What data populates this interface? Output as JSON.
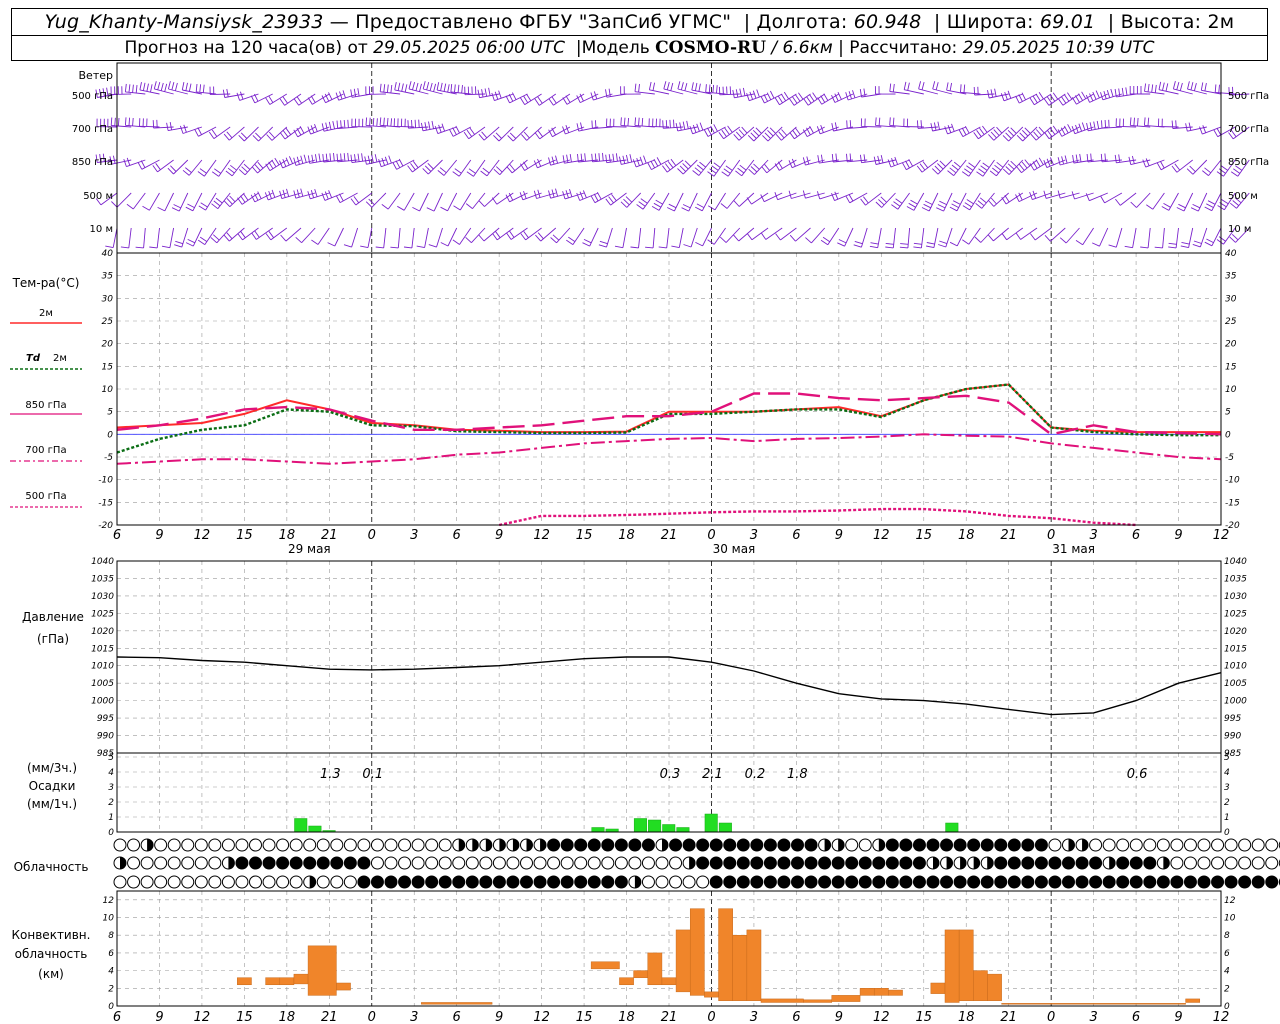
{
  "header": {
    "station": "Yug_Khanty-Mansiysk_23933",
    "provider": " — Предоставлено ФГБУ \"ЗапСиб УГМС\"",
    "lon_label": "Долгота:",
    "lon_value": "60.948",
    "lat_label": "Широта:",
    "lat_value": "69.01",
    "alt_label": "Высота:",
    "alt_value": "2м",
    "forecast_prefix": "Прогноз на 120 часа(ов) от",
    "forecast_from": "29.05.2025 06:00 UTC",
    "model_label": "Модель",
    "model_name": "COSMO-RU",
    "model_res": "/ 6.6км",
    "calc_label": "Рассчитано:",
    "calc_value": "29.05.2025 10:39 UTC"
  },
  "labels": {
    "wind": "Ветер",
    "wind_levels": [
      "500 гПа",
      "700 гПа",
      "850 гПа",
      "500 м",
      "10  м"
    ],
    "temp_title": "Тем-ра(°C)",
    "temp_2m": "2м",
    "td_a": "Td",
    "td_b": "2м",
    "t850": "850 гПа",
    "t700": "700 гПа",
    "t500": "500 гПа",
    "pressure_a": "Давление",
    "pressure_b": "(гПа)",
    "precip_a": "(мм/3ч.)",
    "precip_b": "Осадки",
    "precip_c": "(мм/1ч.)",
    "clouds": "Облачность",
    "conv_a": "Конвективн.",
    "conv_b": "облачность",
    "conv_c": "(км)"
  },
  "colors": {
    "wind": "#7a22cc",
    "t2m": "#ff2a2a",
    "td2m": "#0a6e14",
    "t850": "#e0117a",
    "t700": "#e0117a",
    "t500": "#e0117a",
    "precip": "#22dd22",
    "conv": "#f0852a",
    "zero_line": "#3a3aff"
  },
  "chart_data": [
    {
      "type": "line",
      "title": "Тем-ра(°C)",
      "x_ticks_hours": [
        "6",
        "9",
        "12",
        "15",
        "18",
        "21",
        "0",
        "3",
        "6",
        "9",
        "12",
        "15",
        "18",
        "21",
        "0",
        "3",
        "6",
        "9",
        "12",
        "15",
        "18",
        "21",
        "0",
        "3",
        "6",
        "9",
        "12"
      ],
      "day_labels": [
        "29 мая",
        "30 мая",
        "31 мая"
      ],
      "ylim": [
        -20,
        40
      ],
      "y_ticks": [
        -20,
        -15,
        -10,
        -5,
        0,
        5,
        10,
        15,
        20,
        25,
        30,
        35,
        40
      ],
      "x_hours_from_start": [
        0,
        3,
        6,
        9,
        12,
        15,
        18,
        21,
        24,
        27,
        30,
        33,
        36,
        39,
        42,
        45,
        48,
        51,
        54,
        57,
        60,
        63,
        66,
        69,
        72,
        75,
        78
      ],
      "series": [
        {
          "name": "2м",
          "values": [
            1.5,
            2,
            2.5,
            4.5,
            7.5,
            5.5,
            2.5,
            2,
            1,
            0.8,
            0.5,
            0.5,
            0.6,
            5,
            5,
            5,
            5.5,
            6,
            4,
            7.5,
            10,
            11,
            1.5,
            0.8,
            0.5,
            0.5,
            0.5
          ]
        },
        {
          "name": "Td 2м",
          "values": [
            -4,
            -1,
            1,
            2,
            5.5,
            5,
            2,
            1.8,
            0.7,
            0.5,
            0.3,
            0.3,
            0.4,
            4.5,
            4.5,
            5,
            5.5,
            5.5,
            3.8,
            7.5,
            10,
            11,
            1.5,
            0.5,
            0,
            -0.2,
            -0.2
          ]
        },
        {
          "name": "850 гПа",
          "values": [
            1,
            2,
            3.5,
            5.5,
            6,
            5.5,
            3,
            1,
            1,
            1.5,
            2,
            3,
            4,
            4,
            5,
            9,
            9,
            8,
            7.5,
            8,
            8.5,
            7,
            0,
            2,
            0.5,
            0.3,
            0
          ]
        },
        {
          "name": "700 гПа",
          "values": [
            -6.5,
            -6,
            -5.5,
            -5.5,
            -6,
            -6.5,
            -6,
            -5.5,
            -4.5,
            -4,
            -3,
            -2,
            -1.5,
            -1,
            -0.8,
            -1.5,
            -1,
            -0.8,
            -0.5,
            0,
            -0.3,
            -0.5,
            -2,
            -3,
            -4,
            -5,
            -5.5
          ]
        },
        {
          "name": "500 гПа",
          "values": [
            null,
            null,
            null,
            null,
            null,
            null,
            null,
            null,
            null,
            -20,
            -18,
            -18,
            -17.8,
            -17.5,
            -17.2,
            -17,
            -17,
            -16.8,
            -16.5,
            -16.5,
            -17,
            -18,
            -18.5,
            -19.5,
            -20,
            null,
            null
          ]
        }
      ]
    },
    {
      "type": "line",
      "title": "Давление",
      "ylabel": "(гПа)",
      "ylim": [
        985,
        1040
      ],
      "y_ticks": [
        985,
        990,
        995,
        1000,
        1005,
        1010,
        1015,
        1020,
        1025,
        1030,
        1035,
        1040
      ],
      "x_hours_from_start": [
        0,
        3,
        6,
        9,
        12,
        15,
        18,
        21,
        24,
        27,
        30,
        33,
        36,
        39,
        42,
        45,
        48,
        51,
        54,
        57,
        60,
        63,
        66,
        69,
        72,
        75,
        78
      ],
      "values": [
        1012.5,
        1012.3,
        1011.5,
        1011,
        1010,
        1009,
        1008.8,
        1009,
        1009.5,
        1010,
        1011,
        1012,
        1012.5,
        1012.5,
        1011,
        1008.5,
        1005,
        1002,
        1000.5,
        1000,
        999,
        997.5,
        996,
        996.5,
        1000,
        1005,
        1008
      ]
    },
    {
      "type": "bar",
      "title": "Осадки",
      "ylim": [
        0,
        5
      ],
      "labels_3h": [
        {
          "hour_from_start": 15,
          "text": "1.3"
        },
        {
          "hour_from_start": 18,
          "text": "0.1"
        },
        {
          "hour_from_start": 39,
          "text": "0.3"
        },
        {
          "hour_from_start": 42,
          "text": "2.1"
        },
        {
          "hour_from_start": 45,
          "text": "0.2"
        },
        {
          "hour_from_start": 48,
          "text": "1.8"
        },
        {
          "hour_from_start": 72,
          "text": "0.6"
        }
      ],
      "bars_1h": [
        {
          "h": 13,
          "v": 0.9
        },
        {
          "h": 14,
          "v": 0.4
        },
        {
          "h": 15,
          "v": 0.1
        },
        {
          "h": 34,
          "v": 0.3
        },
        {
          "h": 35,
          "v": 0.2
        },
        {
          "h": 37,
          "v": 0.9
        },
        {
          "h": 38,
          "v": 0.8
        },
        {
          "h": 39,
          "v": 0.5
        },
        {
          "h": 40,
          "v": 0.3
        },
        {
          "h": 42,
          "v": 1.2
        },
        {
          "h": 43,
          "v": 0.6
        },
        {
          "h": 59,
          "v": 0.6
        }
      ]
    },
    {
      "type": "bar",
      "title": "Конвективн. облачность",
      "ylabel": "(км)",
      "ylim": [
        0,
        13
      ],
      "y_ticks": [
        0,
        2,
        4,
        6,
        8,
        10,
        12
      ],
      "ranges": [
        {
          "h0": 8.5,
          "h1": 9.5,
          "lo": 2.4,
          "hi": 3.2
        },
        {
          "h0": 10.5,
          "h1": 11.5,
          "lo": 2.4,
          "hi": 3.2
        },
        {
          "h0": 11.5,
          "h1": 12.5,
          "lo": 2.4,
          "hi": 3.2
        },
        {
          "h0": 12.5,
          "h1": 13.5,
          "lo": 2.5,
          "hi": 3.6
        },
        {
          "h0": 13.5,
          "h1": 15.5,
          "lo": 1.2,
          "hi": 6.8
        },
        {
          "h0": 15.5,
          "h1": 16.5,
          "lo": 1.8,
          "hi": 2.6
        },
        {
          "h0": 21.5,
          "h1": 26.5,
          "lo": 0.2,
          "hi": 0.4
        },
        {
          "h0": 33.5,
          "h1": 35.5,
          "lo": 4.2,
          "hi": 5
        },
        {
          "h0": 35.5,
          "h1": 36.5,
          "lo": 2.4,
          "hi": 3.2
        },
        {
          "h0": 36.5,
          "h1": 37.5,
          "lo": 3.2,
          "hi": 4
        },
        {
          "h0": 37.5,
          "h1": 38.5,
          "lo": 2.4,
          "hi": 6
        },
        {
          "h0": 38.5,
          "h1": 39.5,
          "lo": 2.4,
          "hi": 3.2
        },
        {
          "h0": 39.5,
          "h1": 40.5,
          "lo": 1.6,
          "hi": 8.6
        },
        {
          "h0": 40.5,
          "h1": 41.5,
          "lo": 1.2,
          "hi": 11
        },
        {
          "h0": 41.5,
          "h1": 42.5,
          "lo": 1,
          "hi": 1.6
        },
        {
          "h0": 42.5,
          "h1": 43.5,
          "lo": 0.6,
          "hi": 11
        },
        {
          "h0": 43.5,
          "h1": 44.5,
          "lo": 0.6,
          "hi": 8
        },
        {
          "h0": 44.5,
          "h1": 45.5,
          "lo": 0.6,
          "hi": 8.6
        },
        {
          "h0": 45.5,
          "h1": 48.5,
          "lo": 0.4,
          "hi": 0.8
        },
        {
          "h0": 48.5,
          "h1": 50.5,
          "lo": 0.4,
          "hi": 0.7
        },
        {
          "h0": 50.5,
          "h1": 52.5,
          "lo": 0.5,
          "hi": 1.2
        },
        {
          "h0": 52.5,
          "h1": 53.5,
          "lo": 1.2,
          "hi": 2
        },
        {
          "h0": 53.5,
          "h1": 54.5,
          "lo": 1.2,
          "hi": 2
        },
        {
          "h0": 54.5,
          "h1": 55.5,
          "lo": 1.2,
          "hi": 1.8
        },
        {
          "h0": 57.5,
          "h1": 58.5,
          "lo": 1.4,
          "hi": 2.6
        },
        {
          "h0": 58.5,
          "h1": 59.5,
          "lo": 0.4,
          "hi": 8.6
        },
        {
          "h0": 59.5,
          "h1": 60.5,
          "lo": 0.6,
          "hi": 8.6
        },
        {
          "h0": 60.5,
          "h1": 61.5,
          "lo": 0.6,
          "hi": 4
        },
        {
          "h0": 61.5,
          "h1": 62.5,
          "lo": 0.6,
          "hi": 3.6
        },
        {
          "h0": 62.5,
          "h1": 75.5,
          "lo": 0.2,
          "hi": 0.3
        },
        {
          "h0": 75.5,
          "h1": 76.5,
          "lo": 0.4,
          "hi": 0.8
        }
      ]
    }
  ],
  "clouds": {
    "row_upper": "QQHQQQQQQQQQQQQQQQQQQQQQQHHHHHHHFFFFFFFFHFFFFFFFFFFFHHQQHFFFFFFFFFFFFQHHQQQQQQQQQQQQQQQQQQ",
    "row_middle": "HQQQQQQQHFFFFFFFFFFQQQQQQQQQQQQQQQQQQQQQQQHFFFFFFFFFFFFFFFFFHHHHHFFFFFFFFHFFFHQQQQQQQQQQQQQQ",
    "row_low": "QQQQQQQQQQQQQQHQQQFFFFFFFFFFFFFFFFFFFFHQQQQQFFFFFFFFFFFFFFFFFFFFFFFFFFFFFFFFFFFFFFFFFFFFFFFFFF"
  }
}
